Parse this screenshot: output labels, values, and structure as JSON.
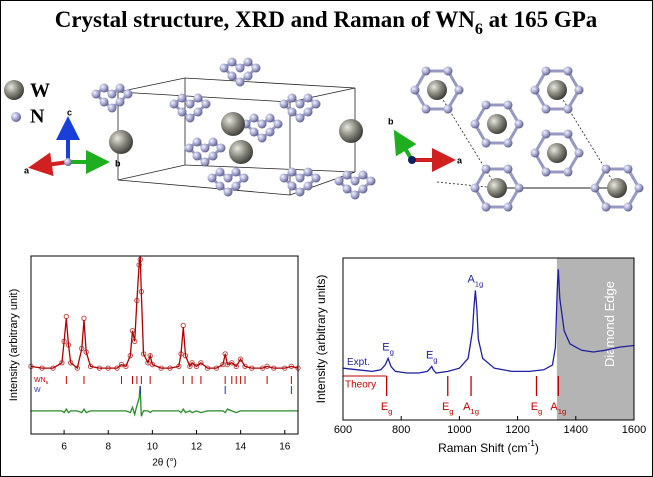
{
  "title": [
    "Crystal structure, XRD and Raman of WN",
    "6",
    " at 165 GPa"
  ],
  "structure": {
    "legend": [
      "W",
      "N"
    ],
    "axes_left": [
      "c",
      "b",
      "a"
    ],
    "axes_right": [
      "b",
      "a"
    ]
  },
  "chart_data": [
    {
      "type": "line",
      "xlabel": "2θ (°)",
      "ylabel": "Intensity (arbitrary unit)",
      "xlim": [
        4.5,
        16.6
      ],
      "xticks": [
        6,
        8,
        10,
        12,
        14,
        16
      ],
      "ylim": [
        0,
        100
      ],
      "x": [
        4.5,
        5.0,
        5.5,
        5.9,
        6.0,
        6.1,
        6.2,
        6.3,
        6.6,
        6.8,
        6.9,
        7.0,
        7.2,
        7.6,
        8.0,
        8.4,
        8.6,
        8.8,
        9.0,
        9.1,
        9.2,
        9.3,
        9.4,
        9.45,
        9.5,
        9.6,
        9.8,
        9.9,
        10.0,
        10.4,
        10.8,
        11.2,
        11.3,
        11.4,
        11.5,
        11.7,
        11.8,
        12.0,
        12.2,
        12.5,
        12.9,
        13.2,
        13.3,
        13.4,
        13.6,
        13.8,
        14.0,
        14.2,
        14.5,
        15.0,
        15.2,
        15.5,
        16.0,
        16.3,
        16.6
      ],
      "series": [
        {
          "style": "points",
          "color": "#c0504d",
          "values": [
            38,
            37,
            37,
            40,
            52,
            66,
            50,
            40,
            37,
            48,
            65,
            46,
            38,
            37,
            37,
            37,
            39,
            38,
            44,
            58,
            52,
            75,
            95,
            98,
            80,
            45,
            40,
            44,
            39,
            37,
            37,
            38,
            45,
            61,
            44,
            38,
            40,
            38,
            40,
            37,
            37,
            39,
            45,
            39,
            40,
            38,
            42,
            38,
            37,
            37,
            38,
            37,
            37,
            38,
            37
          ]
        },
        {
          "style": "line",
          "color": "#b00000",
          "values": [
            38,
            37,
            37,
            40,
            52,
            65,
            50,
            40,
            37,
            48,
            64,
            46,
            38,
            37,
            37,
            37,
            39,
            38,
            44,
            58,
            52,
            75,
            95,
            100,
            80,
            45,
            40,
            44,
            39,
            37,
            37,
            38,
            45,
            60,
            44,
            38,
            40,
            38,
            40,
            37,
            37,
            39,
            45,
            39,
            40,
            38,
            42,
            38,
            37,
            37,
            38,
            37,
            37,
            38,
            37
          ]
        },
        {
          "style": "line",
          "color": "#2a8a2a",
          "values": [
            13,
            13,
            13,
            13,
            12,
            14,
            12,
            13,
            13,
            12,
            14,
            12,
            13,
            13,
            13,
            13,
            13,
            13,
            12,
            15,
            11,
            16,
            20,
            27,
            10,
            13,
            13,
            12,
            13,
            13,
            13,
            13,
            12,
            14,
            12,
            13,
            12,
            13,
            12,
            13,
            13,
            13,
            12,
            14,
            13,
            12,
            13,
            13,
            13,
            13,
            13,
            13,
            13,
            13,
            13
          ]
        }
      ],
      "reflections": [
        {
          "name": [
            "WN",
            "6"
          ],
          "color": "#c00000",
          "positions": [
            6.1,
            6.9,
            8.6,
            9.1,
            9.3,
            9.5,
            9.9,
            11.4,
            11.8,
            12.2,
            13.3,
            13.6,
            13.8,
            14.0,
            14.2,
            15.2,
            16.3
          ]
        },
        {
          "name": [
            "W"
          ],
          "color": "#2233aa",
          "positions": [
            9.45,
            13.3,
            16.3
          ]
        }
      ]
    },
    {
      "type": "line",
      "xlabel": [
        "Raman Shift (cm",
        "-1",
        ")"
      ],
      "ylabel": "Intensity (arbitrary units)",
      "xlim": [
        600,
        1600
      ],
      "xticks": [
        600,
        800,
        1000,
        1200,
        1400,
        1600
      ],
      "ylim": [
        0,
        100
      ],
      "x": [
        600,
        650,
        700,
        730,
        745,
        755,
        765,
        780,
        820,
        860,
        890,
        900,
        905,
        910,
        920,
        960,
        1000,
        1030,
        1045,
        1050,
        1055,
        1060,
        1065,
        1080,
        1120,
        1180,
        1240,
        1290,
        1320,
        1330,
        1336,
        1340,
        1345,
        1360,
        1380,
        1420,
        1460,
        1500,
        1550,
        1600
      ],
      "series": [
        {
          "name": "Expt.",
          "style": "line",
          "color": "#1f1fa0",
          "values": [
            32,
            31,
            30,
            31,
            34,
            38,
            33,
            30,
            29,
            29,
            30,
            32,
            33,
            31,
            29,
            30,
            32,
            38,
            55,
            70,
            80,
            68,
            50,
            38,
            32,
            30,
            30,
            31,
            34,
            45,
            80,
            93,
            75,
            55,
            47,
            43,
            42,
            43,
            45,
            46
          ]
        }
      ],
      "expt_peaks": [
        {
          "label": [
            "E",
            "g"
          ],
          "x": 755
        },
        {
          "label": [
            "E",
            "g"
          ],
          "x": 905
        },
        {
          "label": [
            "A",
            "1g"
          ],
          "x": 1055
        }
      ],
      "theory": {
        "name": "Theory",
        "color": "#c00000",
        "positions": [
          750,
          960,
          1040,
          1265,
          1340
        ],
        "labels": [
          [
            "E",
            "g"
          ],
          [
            "E",
            "g"
          ],
          [
            "A",
            "1g"
          ],
          [
            "E",
            "g"
          ],
          [
            "A",
            "1g"
          ]
        ]
      },
      "diamond_edge": {
        "label": "Diamond Edge",
        "range": [
          1335,
          1600
        ],
        "color": "#b4b4b4"
      }
    }
  ]
}
